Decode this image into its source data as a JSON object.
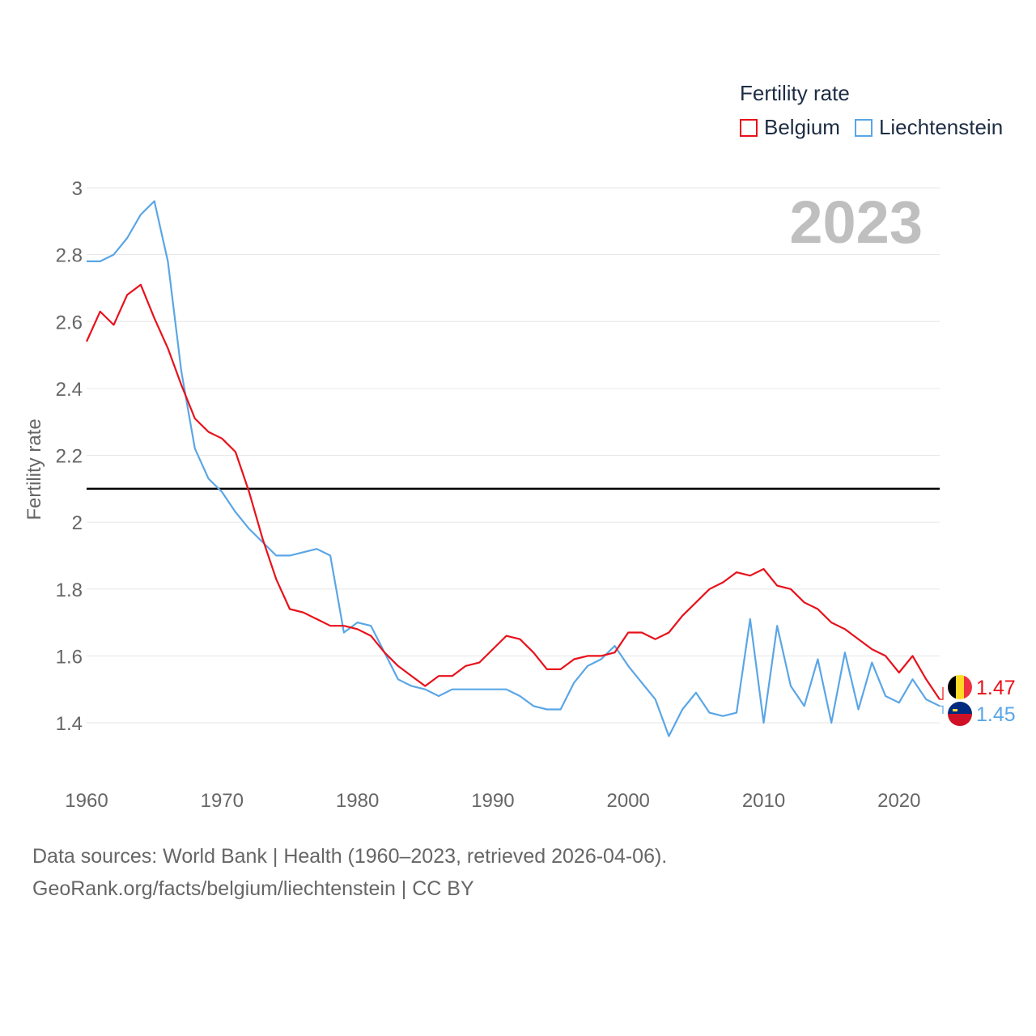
{
  "legend": {
    "title": "Fertility rate",
    "items": [
      {
        "label": "Belgium",
        "color": "#e8111b"
      },
      {
        "label": "Liechtenstein",
        "color": "#5aa6e6"
      }
    ]
  },
  "footer": {
    "line1": "Data sources: World Bank | Health (1960–2023, retrieved 2026-04-06).",
    "line2": "GeoRank.org/facts/belgium/liechtenstein | CC BY"
  },
  "chart_data": {
    "type": "line",
    "title": "Fertility rate",
    "year_label": "2023",
    "xlabel": "",
    "ylabel": "Fertility rate",
    "xlim": [
      1960,
      2023
    ],
    "ylim": [
      1.3,
      3.0
    ],
    "x_ticks": [
      1960,
      1970,
      1980,
      1990,
      2000,
      2010,
      2020
    ],
    "y_ticks": [
      "1.4",
      "1.6",
      "1.8",
      "2",
      "2.2",
      "2.4",
      "2.6",
      "2.8",
      "3"
    ],
    "y_tick_values": [
      1.4,
      1.6,
      1.8,
      2.0,
      2.2,
      2.4,
      2.6,
      2.8,
      3.0
    ],
    "reference_line": 2.1,
    "grid": true,
    "x": [
      1960,
      1961,
      1962,
      1963,
      1964,
      1965,
      1966,
      1967,
      1968,
      1969,
      1970,
      1971,
      1972,
      1973,
      1974,
      1975,
      1976,
      1977,
      1978,
      1979,
      1980,
      1981,
      1982,
      1983,
      1984,
      1985,
      1986,
      1987,
      1988,
      1989,
      1990,
      1991,
      1992,
      1993,
      1994,
      1995,
      1996,
      1997,
      1998,
      1999,
      2000,
      2001,
      2002,
      2003,
      2004,
      2005,
      2006,
      2007,
      2008,
      2009,
      2010,
      2011,
      2012,
      2013,
      2014,
      2015,
      2016,
      2017,
      2018,
      2019,
      2020,
      2021,
      2022,
      2023
    ],
    "series": [
      {
        "name": "Belgium",
        "color": "#e8111b",
        "end_label": "1.47",
        "values": [
          2.54,
          2.63,
          2.59,
          2.68,
          2.71,
          2.61,
          2.52,
          2.41,
          2.31,
          2.27,
          2.25,
          2.21,
          2.09,
          1.95,
          1.83,
          1.74,
          1.73,
          1.71,
          1.69,
          1.69,
          1.68,
          1.66,
          1.61,
          1.57,
          1.54,
          1.51,
          1.54,
          1.54,
          1.57,
          1.58,
          1.62,
          1.66,
          1.65,
          1.61,
          1.56,
          1.56,
          1.59,
          1.6,
          1.6,
          1.61,
          1.67,
          1.67,
          1.65,
          1.67,
          1.72,
          1.76,
          1.8,
          1.82,
          1.85,
          1.84,
          1.86,
          1.81,
          1.8,
          1.76,
          1.74,
          1.7,
          1.68,
          1.65,
          1.62,
          1.6,
          1.55,
          1.6,
          1.53,
          1.47
        ]
      },
      {
        "name": "Liechtenstein",
        "color": "#5aa6e6",
        "end_label": "1.45",
        "values": [
          2.78,
          2.78,
          2.8,
          2.85,
          2.92,
          2.96,
          2.78,
          2.45,
          2.22,
          2.13,
          2.09,
          2.03,
          1.98,
          1.94,
          1.9,
          1.9,
          1.91,
          1.92,
          1.9,
          1.67,
          1.7,
          1.69,
          1.61,
          1.53,
          1.51,
          1.5,
          1.48,
          1.5,
          1.5,
          1.5,
          1.5,
          1.5,
          1.48,
          1.45,
          1.44,
          1.44,
          1.52,
          1.57,
          1.59,
          1.63,
          1.57,
          1.52,
          1.47,
          1.36,
          1.44,
          1.49,
          1.43,
          1.42,
          1.43,
          1.71,
          1.4,
          1.69,
          1.51,
          1.45,
          1.59,
          1.4,
          1.61,
          1.44,
          1.58,
          1.48,
          1.46,
          1.53,
          1.47,
          1.45
        ]
      }
    ]
  }
}
